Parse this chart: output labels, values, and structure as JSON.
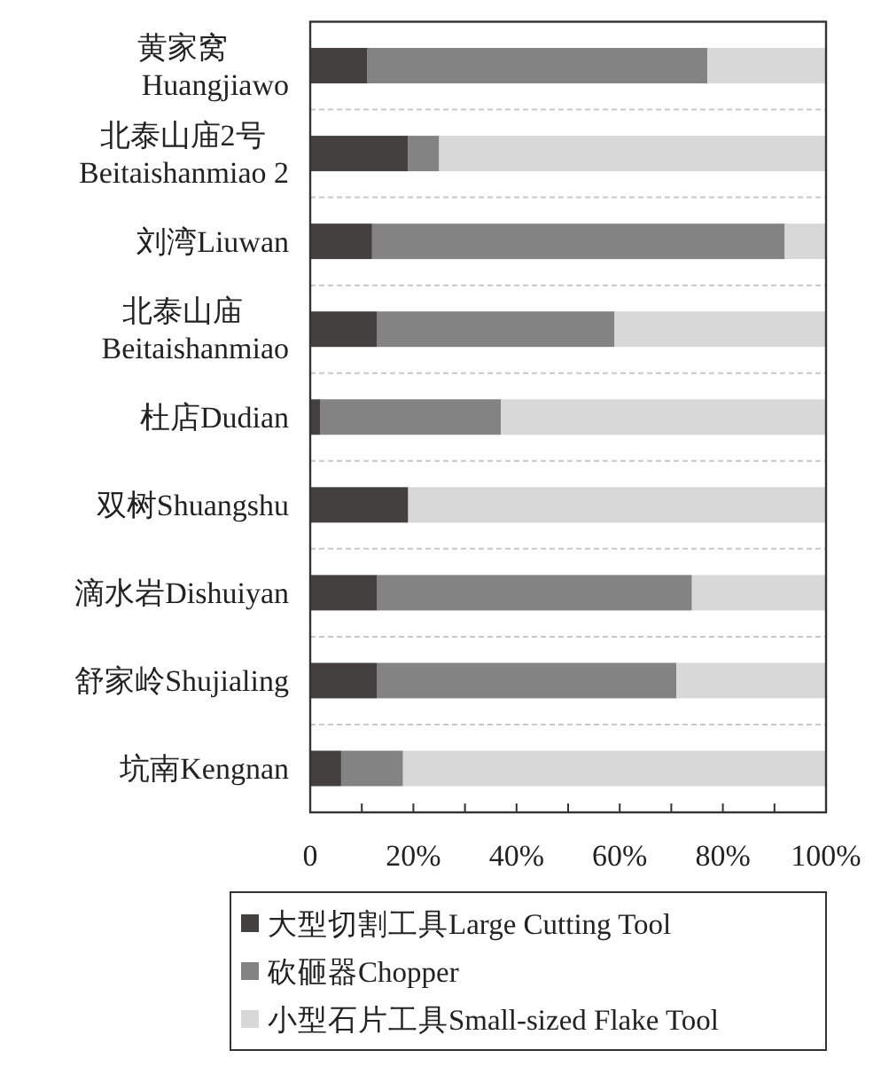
{
  "chart_data": {
    "type": "bar",
    "orientation": "horizontal",
    "stacked": true,
    "categories": [
      "黄家窝 Huangjiawo",
      "北泰山庙2号 Beitaishanmiao 2",
      "刘湾Liuwan",
      "北泰山庙 Beitaishanmiao",
      "杜店Dudian",
      "双树Shuangshu",
      "滴水岩Dishuiyan",
      "舒家岭Shujialing",
      "坑南Kengnan"
    ],
    "series": [
      {
        "name": "大型切割工具Large Cutting Tool",
        "color": "#454040",
        "values": [
          11,
          19,
          12,
          13,
          2,
          19,
          13,
          13,
          6
        ]
      },
      {
        "name": "砍砸器Chopper",
        "color": "#838383",
        "values": [
          66,
          6,
          80,
          46,
          35,
          0,
          61,
          58,
          12
        ]
      },
      {
        "name": "小型石片工具Small-sized Flake Tool",
        "color": "#d8d8d8",
        "values": [
          23,
          75,
          8,
          41,
          63,
          81,
          26,
          29,
          82
        ]
      }
    ],
    "xlim": [
      0,
      100
    ],
    "xticks": [
      {
        "value": 0,
        "label": "0"
      },
      {
        "value": 10,
        "label": null
      },
      {
        "value": 20,
        "label": "20%"
      },
      {
        "value": 30,
        "label": null
      },
      {
        "value": 40,
        "label": "40%"
      },
      {
        "value": 50,
        "label": null
      },
      {
        "value": 60,
        "label": "60%"
      },
      {
        "value": 70,
        "label": null
      },
      {
        "value": 80,
        "label": "80%"
      },
      {
        "value": 90,
        "label": null
      },
      {
        "value": 100,
        "label": "100%"
      }
    ],
    "grid": "y",
    "legend": "bottom"
  }
}
